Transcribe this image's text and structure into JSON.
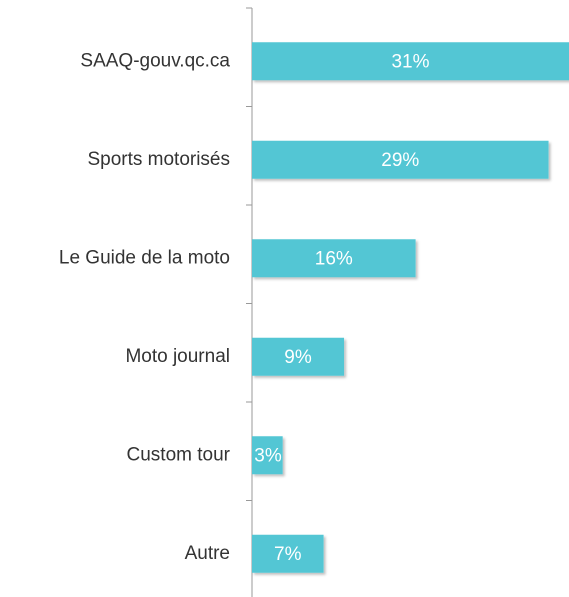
{
  "chart_data": {
    "type": "bar",
    "orientation": "horizontal",
    "categories": [
      "SAAQ-gouv.qc.ca",
      "Sports motorisés",
      "Le Guide de la moto",
      "Moto journal",
      "Custom tour",
      "Autre"
    ],
    "values": [
      31,
      29,
      16,
      9,
      3,
      7
    ],
    "value_labels": [
      "31%",
      "29%",
      "16%",
      "9%",
      "3%",
      "7%"
    ],
    "color": "#52c6d4",
    "xlim": [
      0,
      31
    ]
  }
}
